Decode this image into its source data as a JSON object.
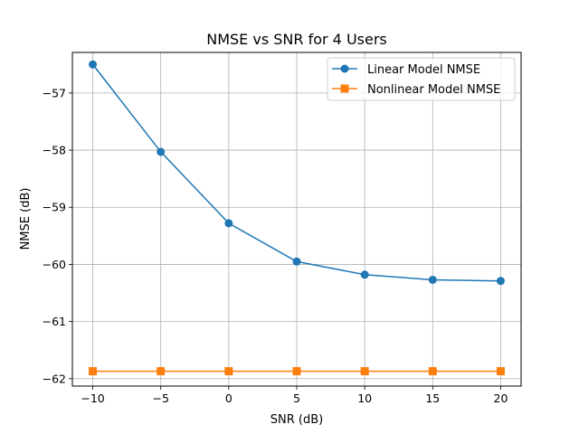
{
  "chart_data": {
    "type": "line",
    "title": "NMSE vs SNR for 4 Users",
    "xlabel": "SNR (dB)",
    "ylabel": "NMSE (dB)",
    "x": [
      -10,
      -5,
      0,
      5,
      10,
      15,
      20
    ],
    "xticks": [
      -10,
      -5,
      0,
      5,
      10,
      15,
      20
    ],
    "xtick_labels": [
      "−10",
      "−5",
      "0",
      "5",
      "10",
      "15",
      "20"
    ],
    "yticks": [
      -62,
      -61,
      -60,
      -59,
      -58,
      -57
    ],
    "ytick_labels": [
      "−62",
      "−61",
      "−60",
      "−59",
      "−58",
      "−57"
    ],
    "xlim": [
      -11.5,
      21.5
    ],
    "ylim": [
      -62.13,
      -56.29
    ],
    "grid": true,
    "legend_position": "top-right",
    "series": [
      {
        "name": "Linear Model NMSE",
        "color": "#1f77b4",
        "marker": "circle",
        "values": [
          -56.5,
          -58.03,
          -59.28,
          -59.95,
          -60.18,
          -60.27,
          -60.29
        ]
      },
      {
        "name": "Nonlinear Model NMSE",
        "color": "#ff7f0e",
        "marker": "square",
        "values": [
          -61.87,
          -61.87,
          -61.87,
          -61.87,
          -61.87,
          -61.87,
          -61.87
        ]
      }
    ]
  }
}
